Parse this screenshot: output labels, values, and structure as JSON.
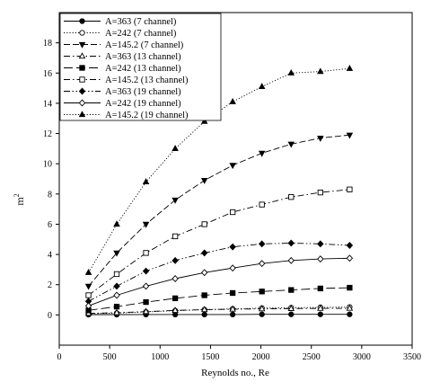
{
  "chart_data": {
    "type": "line",
    "title": "",
    "xlabel": "Reynolds no., Re",
    "ylabel": "m²",
    "ylabel_base": "m",
    "ylabel_sup": "2",
    "xlim": [
      0,
      3500
    ],
    "ylim": [
      -2,
      20
    ],
    "xticks": [
      0,
      500,
      1000,
      1500,
      2000,
      2500,
      3000,
      3500
    ],
    "yticks": [
      0,
      2,
      4,
      6,
      8,
      10,
      12,
      14,
      16,
      18
    ],
    "legend_position": "top-left",
    "grid": false,
    "series": [
      {
        "name": "A=363 (7 channel)",
        "marker": "circle-filled",
        "dash": "solid",
        "x": [
          290,
          570,
          860,
          1150,
          1440,
          1720,
          2010,
          2300,
          2590,
          2880
        ],
        "y": [
          0.02,
          0.02,
          0.03,
          0.03,
          0.03,
          0.03,
          0.04,
          0.04,
          0.04,
          0.04
        ]
      },
      {
        "name": "A=242 (7 channel)",
        "marker": "circle-open",
        "dash": "dotted",
        "x": [
          290,
          570,
          860,
          1150,
          1440,
          1720,
          2010,
          2300,
          2590,
          2880
        ],
        "y": [
          0.08,
          0.12,
          0.2,
          0.28,
          0.35,
          0.4,
          0.45,
          0.48,
          0.5,
          0.52
        ]
      },
      {
        "name": "A=145.2 (7 channel)",
        "marker": "triangle-down-filled",
        "dash": "dashed",
        "x": [
          290,
          570,
          860,
          1150,
          1440,
          1720,
          2010,
          2300,
          2590,
          2880
        ],
        "y": [
          1.9,
          4.1,
          6.0,
          7.6,
          8.9,
          9.9,
          10.7,
          11.3,
          11.7,
          11.9
        ]
      },
      {
        "name": "A=363 (13 channel)",
        "marker": "triangle-up-open",
        "dash": "dashdot",
        "x": [
          290,
          570,
          860,
          1150,
          1440,
          1720,
          2010,
          2300,
          2590,
          2880
        ],
        "y": [
          0.1,
          0.15,
          0.22,
          0.3,
          0.35,
          0.38,
          0.4,
          0.42,
          0.43,
          0.44
        ]
      },
      {
        "name": "A=242 (13 channel)",
        "marker": "square-filled",
        "dash": "longdash",
        "x": [
          290,
          570,
          860,
          1150,
          1440,
          1720,
          2010,
          2300,
          2590,
          2880
        ],
        "y": [
          0.3,
          0.55,
          0.85,
          1.1,
          1.3,
          1.45,
          1.55,
          1.65,
          1.75,
          1.8
        ]
      },
      {
        "name": "A=145.2 (13 channel)",
        "marker": "square-open",
        "dash": "dashdot",
        "x": [
          290,
          570,
          860,
          1150,
          1440,
          1720,
          2010,
          2300,
          2590,
          2880
        ],
        "y": [
          1.3,
          2.7,
          4.1,
          5.2,
          6.0,
          6.8,
          7.3,
          7.8,
          8.1,
          8.3
        ]
      },
      {
        "name": "A=363 (19 channel)",
        "marker": "diamond-filled",
        "dash": "dashdotdot",
        "x": [
          290,
          570,
          860,
          1150,
          1440,
          1720,
          2010,
          2300,
          2590,
          2880
        ],
        "y": [
          0.9,
          1.9,
          2.9,
          3.6,
          4.1,
          4.5,
          4.7,
          4.75,
          4.7,
          4.6
        ]
      },
      {
        "name": "A=242 (19 channel)",
        "marker": "diamond-open",
        "dash": "solid",
        "x": [
          290,
          570,
          860,
          1150,
          1440,
          1720,
          2010,
          2300,
          2590,
          2880
        ],
        "y": [
          0.6,
          1.3,
          1.9,
          2.4,
          2.8,
          3.1,
          3.4,
          3.6,
          3.7,
          3.75
        ]
      },
      {
        "name": "A=145.2 (19 channel)",
        "marker": "triangle-up-filled",
        "dash": "dotted",
        "x": [
          290,
          570,
          860,
          1150,
          1440,
          1720,
          2010,
          2300,
          2590,
          2880
        ],
        "y": [
          2.8,
          6.0,
          8.8,
          11.0,
          12.8,
          14.1,
          15.1,
          16.0,
          16.1,
          16.3
        ]
      }
    ]
  }
}
